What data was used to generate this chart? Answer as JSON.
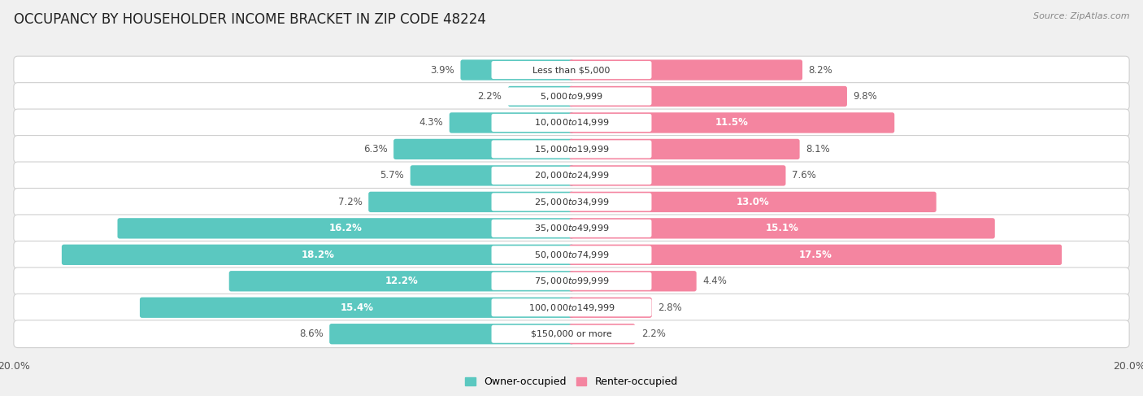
{
  "title": "OCCUPANCY BY HOUSEHOLDER INCOME BRACKET IN ZIP CODE 48224",
  "source": "Source: ZipAtlas.com",
  "categories": [
    "Less than $5,000",
    "$5,000 to $9,999",
    "$10,000 to $14,999",
    "$15,000 to $19,999",
    "$20,000 to $24,999",
    "$25,000 to $34,999",
    "$35,000 to $49,999",
    "$50,000 to $74,999",
    "$75,000 to $99,999",
    "$100,000 to $149,999",
    "$150,000 or more"
  ],
  "owner_values": [
    3.9,
    2.2,
    4.3,
    6.3,
    5.7,
    7.2,
    16.2,
    18.2,
    12.2,
    15.4,
    8.6
  ],
  "renter_values": [
    8.2,
    9.8,
    11.5,
    8.1,
    7.6,
    13.0,
    15.1,
    17.5,
    4.4,
    2.8,
    2.2
  ],
  "owner_color": "#5BC8C0",
  "renter_color": "#F485A0",
  "owner_color_light": "#aee4e0",
  "renter_color_light": "#F9B8CA",
  "bar_height": 0.62,
  "xlim": 20.0,
  "background_color": "#f0f0f0",
  "bar_bg_color": "#f0f0f0",
  "row_bg_color": "#ffffff",
  "title_fontsize": 12,
  "label_fontsize": 8.5,
  "cat_fontsize": 8.0,
  "tick_fontsize": 9,
  "source_fontsize": 8,
  "owner_threshold": 10.0,
  "renter_threshold": 10.0
}
